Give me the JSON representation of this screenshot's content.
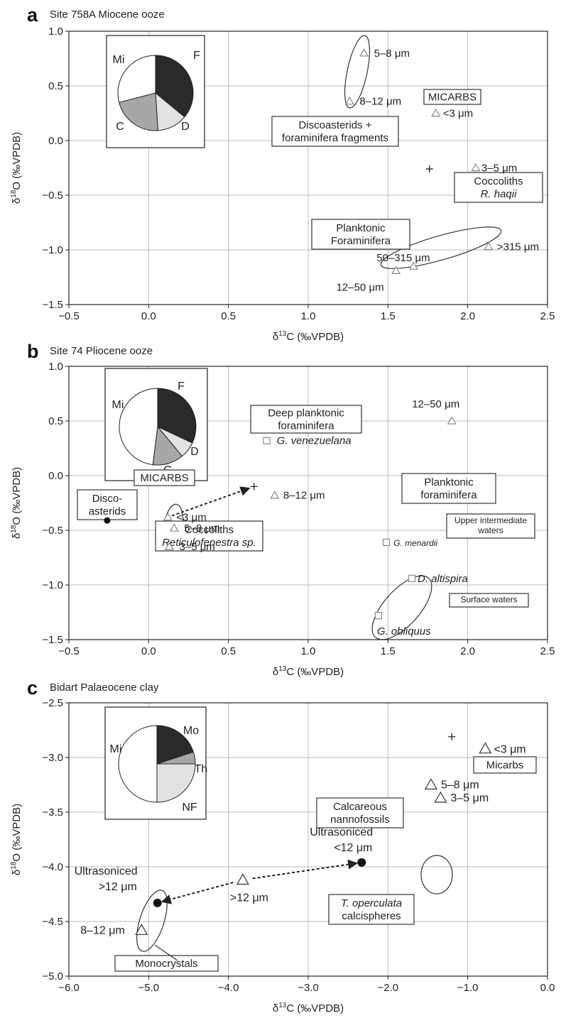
{
  "chart_data": [
    {
      "type": "scatter",
      "panel": "a",
      "title": "Site 758A Miocene ooze",
      "xlabel": "δ13C (‰VPDB)",
      "ylabel": "δ18O (‰VPDB)",
      "xlim": [
        -0.5,
        2.5
      ],
      "ylim": [
        -1.5,
        1.0
      ],
      "xticks": [
        "−0.5",
        "0.0",
        "0.5",
        "1.0",
        "1.5",
        "2.0",
        "2.5"
      ],
      "yticks": [
        "−1.5",
        "−1.0",
        "−0.5",
        "0.0",
        "0.5",
        "1.0"
      ],
      "grid": true,
      "pie": {
        "slices": [
          {
            "label": "F",
            "value": 0.36,
            "color": "#2a2a2a"
          },
          {
            "label": "D",
            "value": 0.13,
            "color": "#e2e2e2"
          },
          {
            "label": "C",
            "value": 0.22,
            "color": "#a7a7a7"
          },
          {
            "label": "Mi",
            "value": 0.29,
            "color": "#ffffff"
          }
        ]
      },
      "points": [
        {
          "x": 1.35,
          "y": 0.8,
          "marker": "triangle",
          "label": "5–8 μm"
        },
        {
          "x": 1.26,
          "y": 0.36,
          "marker": "triangle",
          "label": "8–12 μm"
        },
        {
          "x": 1.8,
          "y": 0.25,
          "marker": "triangle",
          "label": "<3 μm"
        },
        {
          "x": 2.05,
          "y": -0.25,
          "marker": "triangle",
          "label": "3–5 μm"
        },
        {
          "x": 2.13,
          "y": -0.97,
          "marker": "triangle",
          "label": ">315 μm"
        },
        {
          "x": 1.66,
          "y": -1.15,
          "marker": "triangle",
          "label": "50–315 μm"
        },
        {
          "x": 1.55,
          "y": -1.19,
          "marker": "triangle",
          "label": "12–50 μm"
        },
        {
          "x": 1.76,
          "y": -0.26,
          "marker": "plus",
          "label": ""
        }
      ],
      "boxes": [
        {
          "lines": [
            "MICARBS"
          ],
          "italic": [
            false
          ]
        },
        {
          "lines": [
            "Discoasterids +",
            "foraminifera fragments"
          ],
          "italic": [
            false,
            false
          ]
        },
        {
          "lines": [
            "Coccoliths",
            "R. haqii"
          ],
          "italic": [
            false,
            true
          ]
        },
        {
          "lines": [
            "Planktonic",
            "Foraminifera"
          ],
          "italic": [
            false,
            false
          ]
        }
      ]
    },
    {
      "type": "scatter",
      "panel": "b",
      "title": "Site 74 Pliocene ooze",
      "xlabel": "δ13C (‰VPDB)",
      "ylabel": "δ18O (‰VPDB)",
      "xlim": [
        -0.5,
        2.5
      ],
      "ylim": [
        -1.5,
        1.0
      ],
      "xticks": [
        "−0.5",
        "0.0",
        "0.5",
        "1.0",
        "1.5",
        "2.0",
        "2.5"
      ],
      "yticks": [
        "−1.5",
        "−1.0",
        "−0.5",
        "0.0",
        "0.5",
        "1.0"
      ],
      "grid": true,
      "pie": {
        "slices": [
          {
            "label": "F",
            "value": 0.32,
            "color": "#2a2a2a"
          },
          {
            "label": "D",
            "value": 0.07,
            "color": "#e2e2e2"
          },
          {
            "label": "C",
            "value": 0.13,
            "color": "#a7a7a7"
          },
          {
            "label": "Mi",
            "value": 0.48,
            "color": "#ffffff"
          }
        ]
      },
      "points": [
        {
          "x": 1.9,
          "y": 0.5,
          "marker": "triangle",
          "label": "12–50 μm"
        },
        {
          "x": 0.74,
          "y": 0.32,
          "marker": "square",
          "label": "G. venezuelana"
        },
        {
          "x": 0.79,
          "y": -0.18,
          "marker": "triangle",
          "label": "8–12 μm"
        },
        {
          "x": 0.12,
          "y": -0.38,
          "marker": "triangle",
          "label": "<3 μm"
        },
        {
          "x": 0.16,
          "y": -0.48,
          "marker": "triangle",
          "label": "5–8 μm"
        },
        {
          "x": 0.13,
          "y": -0.65,
          "marker": "triangle",
          "label": "3–5 μm"
        },
        {
          "x": 1.49,
          "y": -0.61,
          "marker": "square",
          "label": "G. menardii"
        },
        {
          "x": 1.65,
          "y": -0.94,
          "marker": "square",
          "label": "D. altispira"
        },
        {
          "x": 1.44,
          "y": -1.28,
          "marker": "square",
          "label": "G. obliquus"
        },
        {
          "x": -0.26,
          "y": -0.41,
          "marker": "dot",
          "label": ""
        },
        {
          "x": 0.66,
          "y": -0.1,
          "marker": "plus",
          "label": ""
        }
      ],
      "boxes": [
        {
          "lines": [
            "Deep planktonic",
            "foraminifera"
          ],
          "italic": [
            false,
            false
          ]
        },
        {
          "lines": [
            "MICARBS"
          ],
          "italic": [
            false
          ]
        },
        {
          "lines": [
            "Disco-",
            "asterids"
          ],
          "italic": [
            false,
            false
          ]
        },
        {
          "lines": [
            "Coccoliths",
            "Reticulofenestra sp."
          ],
          "italic": [
            false,
            true
          ]
        },
        {
          "lines": [
            "Planktonic",
            "foraminifera"
          ],
          "italic": [
            false,
            false
          ]
        },
        {
          "lines": [
            "Upper intermediate",
            "waters"
          ],
          "italic": [
            false,
            false
          ]
        },
        {
          "lines": [
            "Surface waters"
          ],
          "italic": [
            false
          ]
        }
      ]
    },
    {
      "type": "scatter",
      "panel": "c",
      "title": "Bidart Palaeocene clay",
      "xlabel": "δ13C (‰VPDB)",
      "ylabel": "δ18O (‰VPDB)",
      "xlim": [
        -6.0,
        0.0
      ],
      "ylim": [
        -5.0,
        -2.5
      ],
      "xticks": [
        "−6.0",
        "−5.0",
        "−4.0",
        "−3.0",
        "−2.0",
        "−1.0",
        "0.0"
      ],
      "yticks": [
        "−5.0",
        "−4.5",
        "−4.0",
        "−3.5",
        "−3.0",
        "−2.5"
      ],
      "grid": true,
      "pie": {
        "slices": [
          {
            "label": "Mo",
            "value": 0.2,
            "color": "#2a2a2a"
          },
          {
            "label": "Th",
            "value": 0.05,
            "color": "#a7a7a7"
          },
          {
            "label": "NF",
            "value": 0.25,
            "color": "#e2e2e2"
          },
          {
            "label": "Mi",
            "value": 0.5,
            "color": "#ffffff"
          }
        ]
      },
      "points": [
        {
          "x": -1.46,
          "y": -3.25,
          "marker": "triangle",
          "label": "5–8 μm"
        },
        {
          "x": -1.34,
          "y": -3.37,
          "marker": "triangle",
          "label": "3–5 μm"
        },
        {
          "x": -0.78,
          "y": -2.92,
          "marker": "triangle",
          "label": "<3 μm"
        },
        {
          "x": -3.82,
          "y": -4.12,
          "marker": "triangle",
          "label": ">12 μm"
        },
        {
          "x": -5.09,
          "y": -4.58,
          "marker": "triangle",
          "label": "8–12 μm"
        },
        {
          "x": -2.33,
          "y": -3.96,
          "marker": "dot",
          "label": "Ultrasoniced <12 μm"
        },
        {
          "x": -4.89,
          "y": -4.33,
          "marker": "dot",
          "label": "Ultrasoniced >12 μm"
        },
        {
          "x": -1.2,
          "y": -2.81,
          "marker": "plus",
          "label": ""
        }
      ],
      "boxes": [
        {
          "lines": [
            "Micarbs"
          ],
          "italic": [
            false
          ]
        },
        {
          "lines": [
            "Calcareous",
            "nannofossils"
          ],
          "italic": [
            false,
            false
          ]
        },
        {
          "lines": [
            "T. operculata",
            "calcispheres"
          ],
          "italic": [
            true,
            false
          ]
        },
        {
          "lines": [
            "Monocrystals"
          ],
          "italic": [
            false
          ]
        }
      ]
    }
  ]
}
